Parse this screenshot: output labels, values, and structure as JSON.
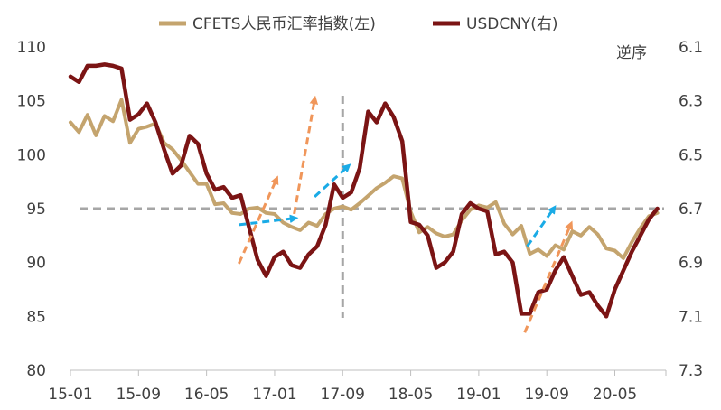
{
  "chart_data": {
    "type": "line",
    "legend": [
      {
        "name": "CFETS人民币汇率指数(左)",
        "color": "#C4A46E"
      },
      {
        "name": "USDCNY(右)",
        "color": "#7B1414"
      }
    ],
    "right_axis_note": "逆序",
    "x_tick_labels": [
      "15-01",
      "15-09",
      "16-05",
      "17-01",
      "17-09",
      "18-05",
      "19-01",
      "19-09",
      "20-05"
    ],
    "left_axis": {
      "ticks": [
        110,
        105,
        100,
        95,
        90,
        85,
        80
      ],
      "ylim": [
        80,
        110
      ]
    },
    "right_axis": {
      "ticks": [
        "6.1",
        "6.3",
        "6.5",
        "6.7",
        "6.9",
        "7.1",
        "7.3"
      ],
      "ylim": [
        6.1,
        7.3
      ],
      "inverted": true
    },
    "x_range": [
      0,
      70
    ],
    "series": [
      {
        "name": "CFETS人民币汇率指数(左)",
        "axis": "left",
        "color": "#C4A46E",
        "x": [
          0,
          1,
          2,
          3,
          4,
          5,
          6,
          7,
          8,
          9,
          10,
          11,
          12,
          13,
          14,
          15,
          16,
          17,
          18,
          19,
          20,
          21,
          22,
          23,
          24,
          25,
          26,
          27,
          28,
          29,
          30,
          31,
          32,
          33,
          34,
          35,
          36,
          37,
          38,
          39,
          40,
          41,
          42,
          43,
          44,
          45,
          46,
          47,
          48,
          49,
          50,
          51,
          52,
          53,
          54,
          55,
          56,
          57,
          58,
          59,
          60,
          61,
          62,
          63,
          64,
          65,
          66,
          67,
          68,
          69
        ],
        "values": [
          103.0,
          102.1,
          103.7,
          101.8,
          103.6,
          103.1,
          105.1,
          101.1,
          102.4,
          102.6,
          102.9,
          101.1,
          100.5,
          99.5,
          98.4,
          97.3,
          97.3,
          95.4,
          95.5,
          94.6,
          94.5,
          95.0,
          95.1,
          94.6,
          94.5,
          93.7,
          93.3,
          93.0,
          93.7,
          93.4,
          94.5,
          95.0,
          95.2,
          94.9,
          95.5,
          96.2,
          96.9,
          97.4,
          98.0,
          97.8,
          94.7,
          92.8,
          93.3,
          92.7,
          92.4,
          92.6,
          93.9,
          94.9,
          95.3,
          95.1,
          95.6,
          93.6,
          92.6,
          93.4,
          90.8,
          91.2,
          90.6,
          91.6,
          91.2,
          92.9,
          92.5,
          93.3,
          92.6,
          91.3,
          91.1,
          90.4,
          91.9,
          93.2,
          94.3,
          94.6
        ]
      },
      {
        "name": "USDCNY(右)",
        "axis": "right",
        "color": "#7B1414",
        "x": [
          0,
          1,
          2,
          3,
          4,
          5,
          6,
          7,
          8,
          9,
          10,
          11,
          12,
          13,
          14,
          15,
          16,
          17,
          18,
          19,
          20,
          21,
          22,
          23,
          24,
          25,
          26,
          27,
          28,
          29,
          30,
          31,
          32,
          33,
          34,
          35,
          36,
          37,
          38,
          39,
          40,
          41,
          42,
          43,
          44,
          45,
          46,
          47,
          48,
          49,
          50,
          51,
          52,
          53,
          54,
          55,
          56,
          57,
          58,
          59,
          60,
          61,
          62,
          63,
          64,
          65,
          66,
          67,
          68,
          69
        ],
        "values": [
          6.21,
          6.23,
          6.17,
          6.17,
          6.165,
          6.17,
          6.18,
          6.37,
          6.35,
          6.31,
          6.38,
          6.48,
          6.57,
          6.54,
          6.43,
          6.46,
          6.57,
          6.63,
          6.62,
          6.66,
          6.65,
          6.77,
          6.89,
          6.95,
          6.88,
          6.86,
          6.91,
          6.92,
          6.87,
          6.84,
          6.76,
          6.61,
          6.66,
          6.64,
          6.55,
          6.34,
          6.38,
          6.31,
          6.36,
          6.45,
          6.75,
          6.76,
          6.8,
          6.92,
          6.9,
          6.86,
          6.72,
          6.68,
          6.7,
          6.71,
          6.87,
          6.86,
          6.9,
          7.09,
          7.09,
          7.01,
          7.0,
          6.93,
          6.88,
          6.95,
          7.02,
          7.01,
          7.06,
          7.1,
          7.0,
          6.93,
          6.86,
          6.8,
          6.74,
          6.7
        ]
      }
    ],
    "reference_lines": {
      "horizontal_left_value": 95,
      "vertical_x_label": "17-09"
    },
    "arrows": [
      {
        "color": "#F0965A",
        "from": [
          19.8,
          89.9
        ],
        "to": [
          24.2,
          97.7
        ]
      },
      {
        "color": "#F0965A",
        "from": [
          26.3,
          94.5
        ],
        "to": [
          28.7,
          105.1
        ]
      },
      {
        "color": "#1AABE6",
        "from": [
          19.8,
          93.5
        ],
        "to": [
          26.3,
          94.1
        ]
      },
      {
        "color": "#1AABE6",
        "from": [
          28.7,
          96.1
        ],
        "to": [
          32.6,
          98.9
        ]
      },
      {
        "color": "#1AABE6",
        "from": [
          53.7,
          91.5
        ],
        "to": [
          56.8,
          95.0
        ]
      },
      {
        "color": "#F0965A",
        "from": [
          53.4,
          83.5
        ],
        "to": [
          58.8,
          93.5
        ]
      }
    ]
  }
}
